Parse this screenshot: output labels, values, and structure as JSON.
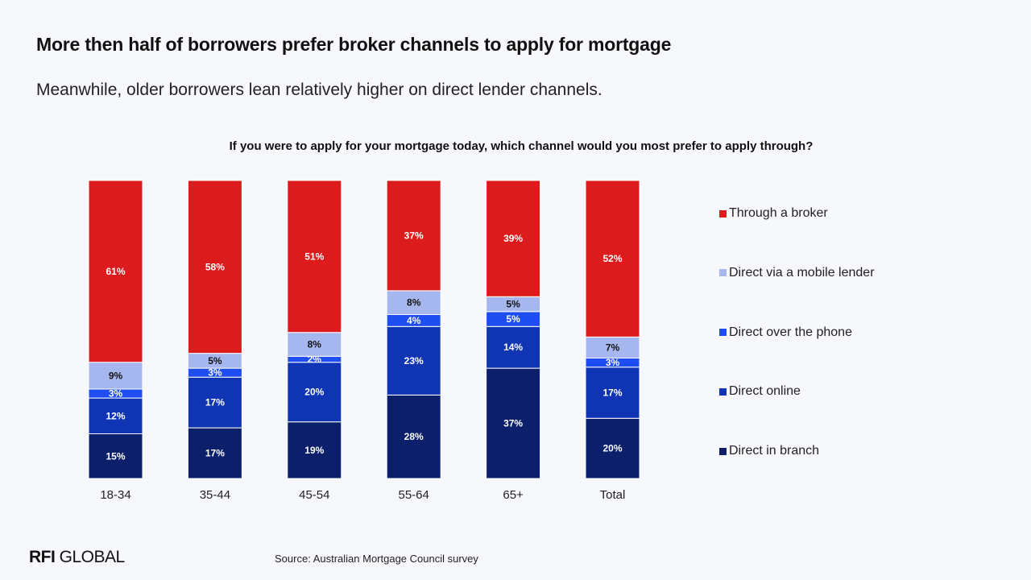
{
  "page": {
    "title": "More then half of borrowers prefer broker channels to apply for mortgage",
    "subtitle": "Meanwhile, older borrowers lean relatively higher on direct lender channels.",
    "logo_bold": "RFI",
    "logo_rest": " GLOBAL",
    "source": "Source: Australian Mortgage Council survey"
  },
  "chart_data": {
    "type": "bar",
    "stacked": true,
    "title": "If you were to apply for your mortgage today, which channel would you most prefer to apply through?",
    "xlabel": "",
    "ylabel": "",
    "categories": [
      "18-34",
      "35-44",
      "45-54",
      "55-64",
      "65+",
      "Total"
    ],
    "series": [
      {
        "name": "Direct in branch",
        "color": "#0b1f6b",
        "label_color": "#ffffff",
        "values": [
          15,
          17,
          19,
          28,
          37,
          20
        ]
      },
      {
        "name": "Direct online",
        "color": "#0f35b5",
        "label_color": "#ffffff",
        "values": [
          12,
          17,
          20,
          23,
          14,
          17
        ]
      },
      {
        "name": "Direct over the phone",
        "color": "#1e4ef2",
        "label_color": "#ffffff",
        "values": [
          3,
          3,
          2,
          4,
          5,
          3
        ]
      },
      {
        "name": "Direct via a mobile lender",
        "color": "#a6b7ef",
        "label_color": "#111111",
        "values": [
          9,
          5,
          8,
          8,
          5,
          7
        ]
      },
      {
        "name": "Through a broker",
        "color": "#dc1c1c",
        "label_color": "#ffffff",
        "values": [
          61,
          58,
          51,
          37,
          39,
          52
        ]
      }
    ],
    "value_suffix": "%",
    "legend_position": "right",
    "legend_order": [
      "Through a broker",
      "Direct via a mobile lender",
      "Direct over the phone",
      "Direct online",
      "Direct in branch"
    ],
    "grid": false
  }
}
